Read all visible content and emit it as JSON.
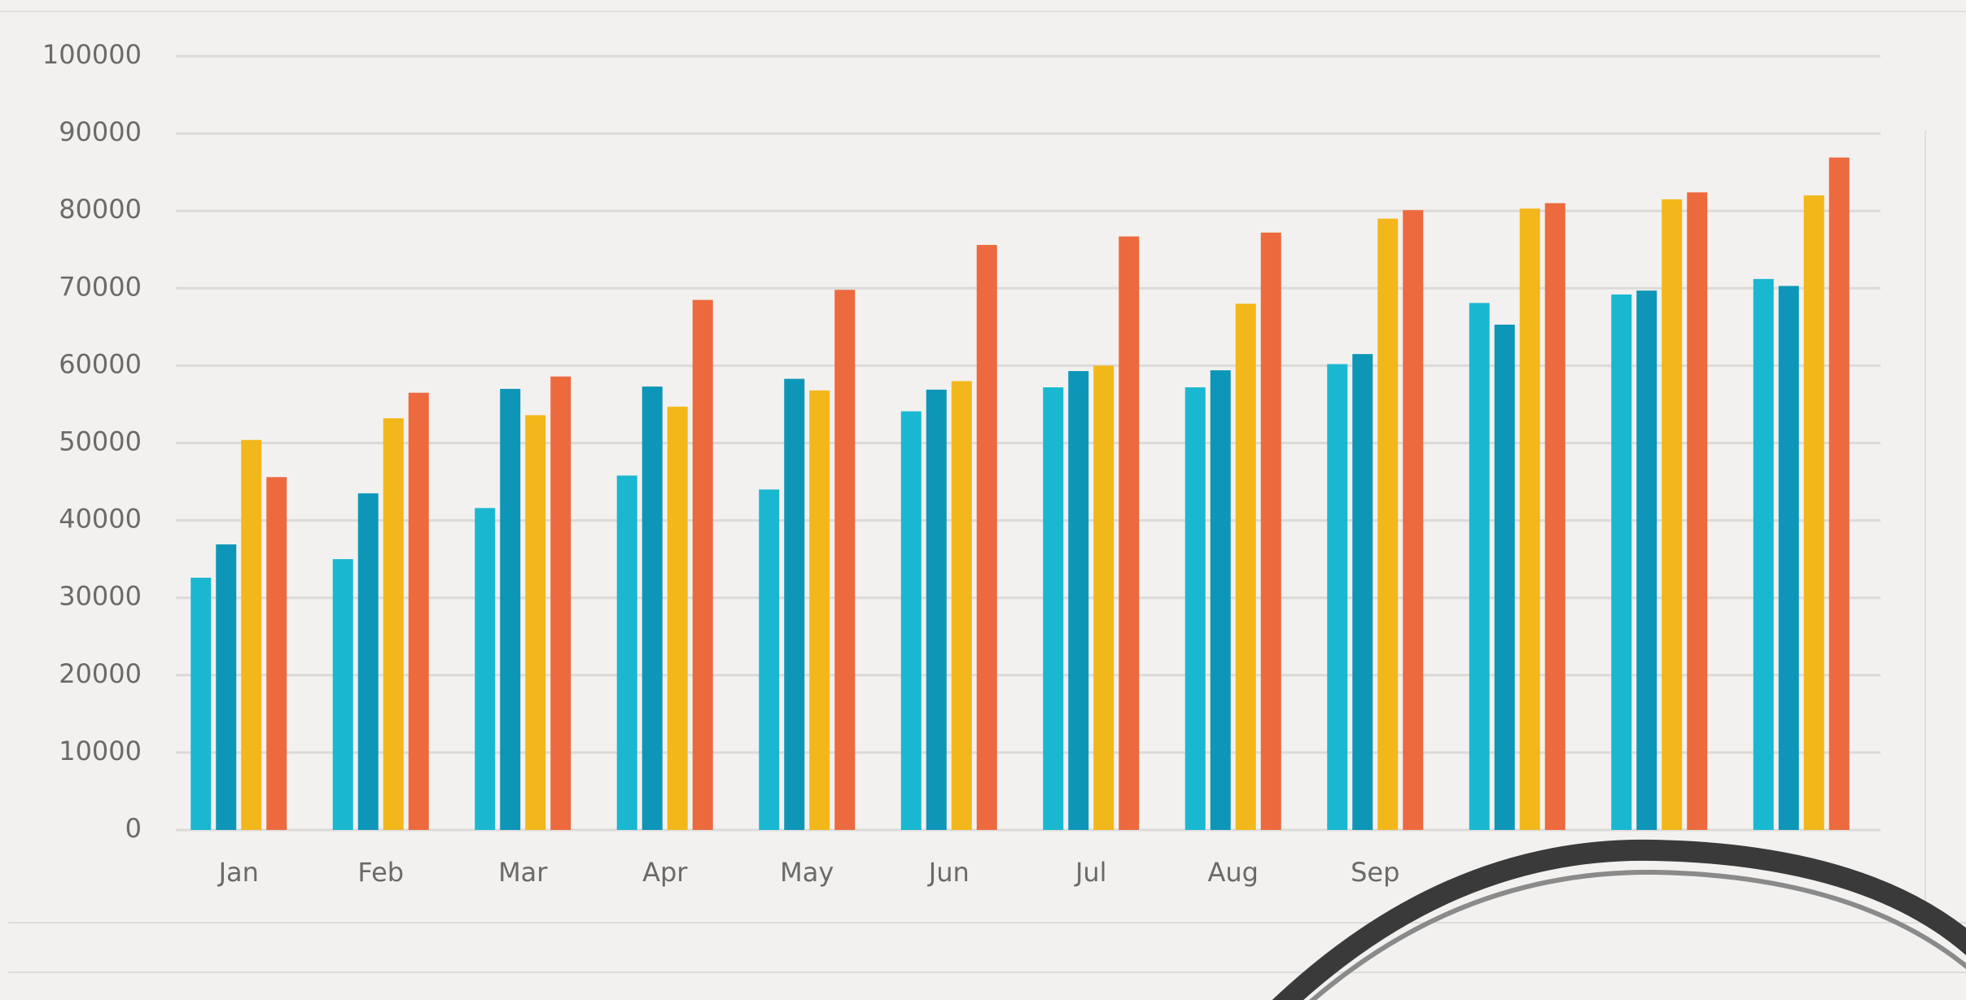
{
  "chart_data": {
    "type": "bar",
    "categories": [
      "Jan",
      "Feb",
      "Mar",
      "Apr",
      "May",
      "Jun",
      "Jul",
      "Aug",
      "Sep",
      null,
      null,
      null
    ],
    "series": [
      {
        "color": "#1ab8d0",
        "values": [
          32600,
          35000,
          41600,
          45800,
          44000,
          54100,
          57200,
          57200,
          60200,
          68100,
          69200,
          71200
        ]
      },
      {
        "color": "#0e96b8",
        "values": [
          36900,
          43500,
          57000,
          57300,
          58300,
          56900,
          59300,
          59400,
          61500,
          65300,
          69700,
          70300
        ]
      },
      {
        "color": "#f2b71a",
        "values": [
          50400,
          53200,
          53600,
          54700,
          56800,
          58000,
          60000,
          68000,
          79000,
          80300,
          81500,
          82000
        ]
      },
      {
        "color": "#ec6a3e",
        "values": [
          45600,
          56500,
          58600,
          68500,
          69800,
          75600,
          76700,
          77200,
          80100,
          81000,
          82400,
          86900
        ]
      }
    ],
    "ylim": [
      0,
      100000
    ],
    "yticks": [
      0,
      10000,
      20000,
      30000,
      40000,
      50000,
      60000,
      70000,
      80000,
      90000,
      100000
    ],
    "grid": true
  }
}
